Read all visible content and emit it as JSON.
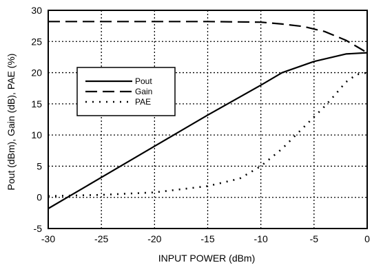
{
  "chart_data": {
    "type": "line",
    "title": "",
    "xlabel": "INPUT POWER (dBm)",
    "ylabel": "Pout (dBm), Gain (dB), PAE (%)",
    "xlim": [
      -30,
      0
    ],
    "ylim": [
      -5,
      30
    ],
    "xticks": [
      -30,
      -25,
      -20,
      -15,
      -10,
      -5,
      0
    ],
    "yticks": [
      -5,
      0,
      5,
      10,
      15,
      20,
      25,
      30
    ],
    "grid": true,
    "legend": {
      "placement": "upper-left-inside",
      "entries": [
        "Pout",
        "Gain",
        "PAE"
      ]
    },
    "series": [
      {
        "name": "Pout",
        "style": "solid",
        "x": [
          -30,
          -25,
          -20,
          -15,
          -10,
          -8,
          -5,
          -2,
          0
        ],
        "y": [
          -1.8,
          3.2,
          8.2,
          13.2,
          18.0,
          20.0,
          21.8,
          23.0,
          23.2
        ]
      },
      {
        "name": "Gain",
        "style": "dashed",
        "x": [
          -30,
          -20,
          -15,
          -10,
          -8,
          -6,
          -4,
          -2,
          -1,
          0
        ],
        "y": [
          28.2,
          28.2,
          28.2,
          28.1,
          27.8,
          27.4,
          26.6,
          25.2,
          24.2,
          23.2
        ]
      },
      {
        "name": "PAE",
        "style": "dotted",
        "x": [
          -30,
          -25,
          -20,
          -15,
          -12,
          -10,
          -8,
          -6,
          -4,
          -3,
          -2,
          -1,
          0
        ],
        "y": [
          0.2,
          0.4,
          0.8,
          1.8,
          3.0,
          5.0,
          7.8,
          11.2,
          14.6,
          16.5,
          18.5,
          19.7,
          20.0
        ]
      }
    ]
  }
}
